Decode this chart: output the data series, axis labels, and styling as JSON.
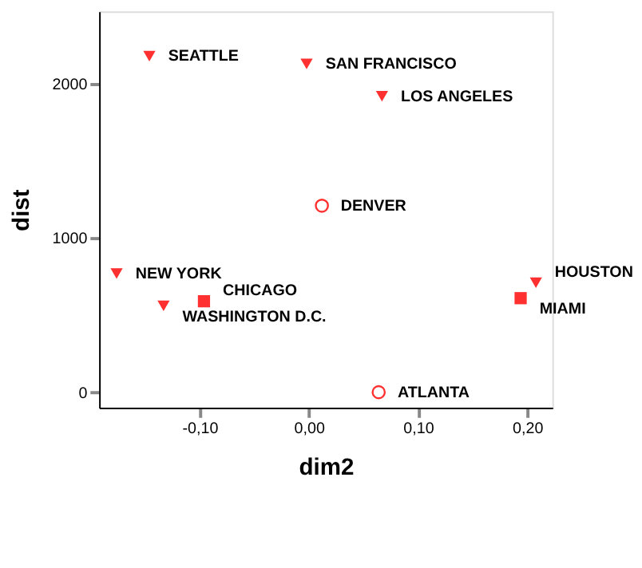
{
  "chart_data": {
    "type": "scatter",
    "xlabel": "dim2",
    "ylabel": "dist",
    "xlim": [
      -0.192,
      0.223
    ],
    "ylim": [
      -100,
      2470
    ],
    "xticks": [
      {
        "value": -0.1,
        "label": "-0,10"
      },
      {
        "value": 0,
        "label": "0,00"
      },
      {
        "value": 0.1,
        "label": "0,10"
      },
      {
        "value": 0.2,
        "label": "0,20"
      }
    ],
    "yticks": [
      0,
      1000,
      2000
    ],
    "grid": false,
    "series": [
      {
        "color": "#ff3030",
        "marker": "triangle",
        "x": [
          -0.146,
          -0.002,
          -0.176,
          -0.133,
          0.208
        ],
        "values": [
          2180,
          2130,
          770,
          560,
          710
        ]
      },
      {
        "color": "#ff3030",
        "marker": "triangle",
        "x": [
          0.067
        ],
        "values": [
          1920
        ]
      },
      {
        "color": "#ff3030",
        "marker": "circle",
        "x": [
          0.012
        ],
        "values": [
          1210
        ]
      },
      {
        "color": "#ff3030",
        "marker": "square",
        "x": [
          -0.096
        ],
        "values": [
          590
        ]
      },
      {
        "color": "#ff3030",
        "marker": "square",
        "x": [
          0.194
        ],
        "values": [
          610
        ]
      },
      {
        "color": "#ff3030",
        "marker": "circle",
        "x": [
          0.064
        ],
        "values": [
          0
        ]
      }
    ],
    "annotations": [
      {
        "text": "SEATTLE",
        "x": -0.146,
        "y": 2180
      },
      {
        "text": "SAN FRANCISCO",
        "x": -0.002,
        "y": 2130
      },
      {
        "text": "LOS ANGELES",
        "x": 0.067,
        "y": 1920
      },
      {
        "text": "DENVER",
        "x": 0.012,
        "y": 1210
      },
      {
        "text": "NEW YORK",
        "x": -0.176,
        "y": 770
      },
      {
        "text": "CHICAGO",
        "x": -0.096,
        "y": 590
      },
      {
        "text": "WASHINGTON D.C.",
        "x": -0.133,
        "y": 560
      },
      {
        "text": "HOUSTON",
        "x": 0.208,
        "y": 710
      },
      {
        "text": "MIAMI",
        "x": 0.194,
        "y": 610
      },
      {
        "text": "ATLANTA",
        "x": 0.064,
        "y": 0
      }
    ]
  }
}
